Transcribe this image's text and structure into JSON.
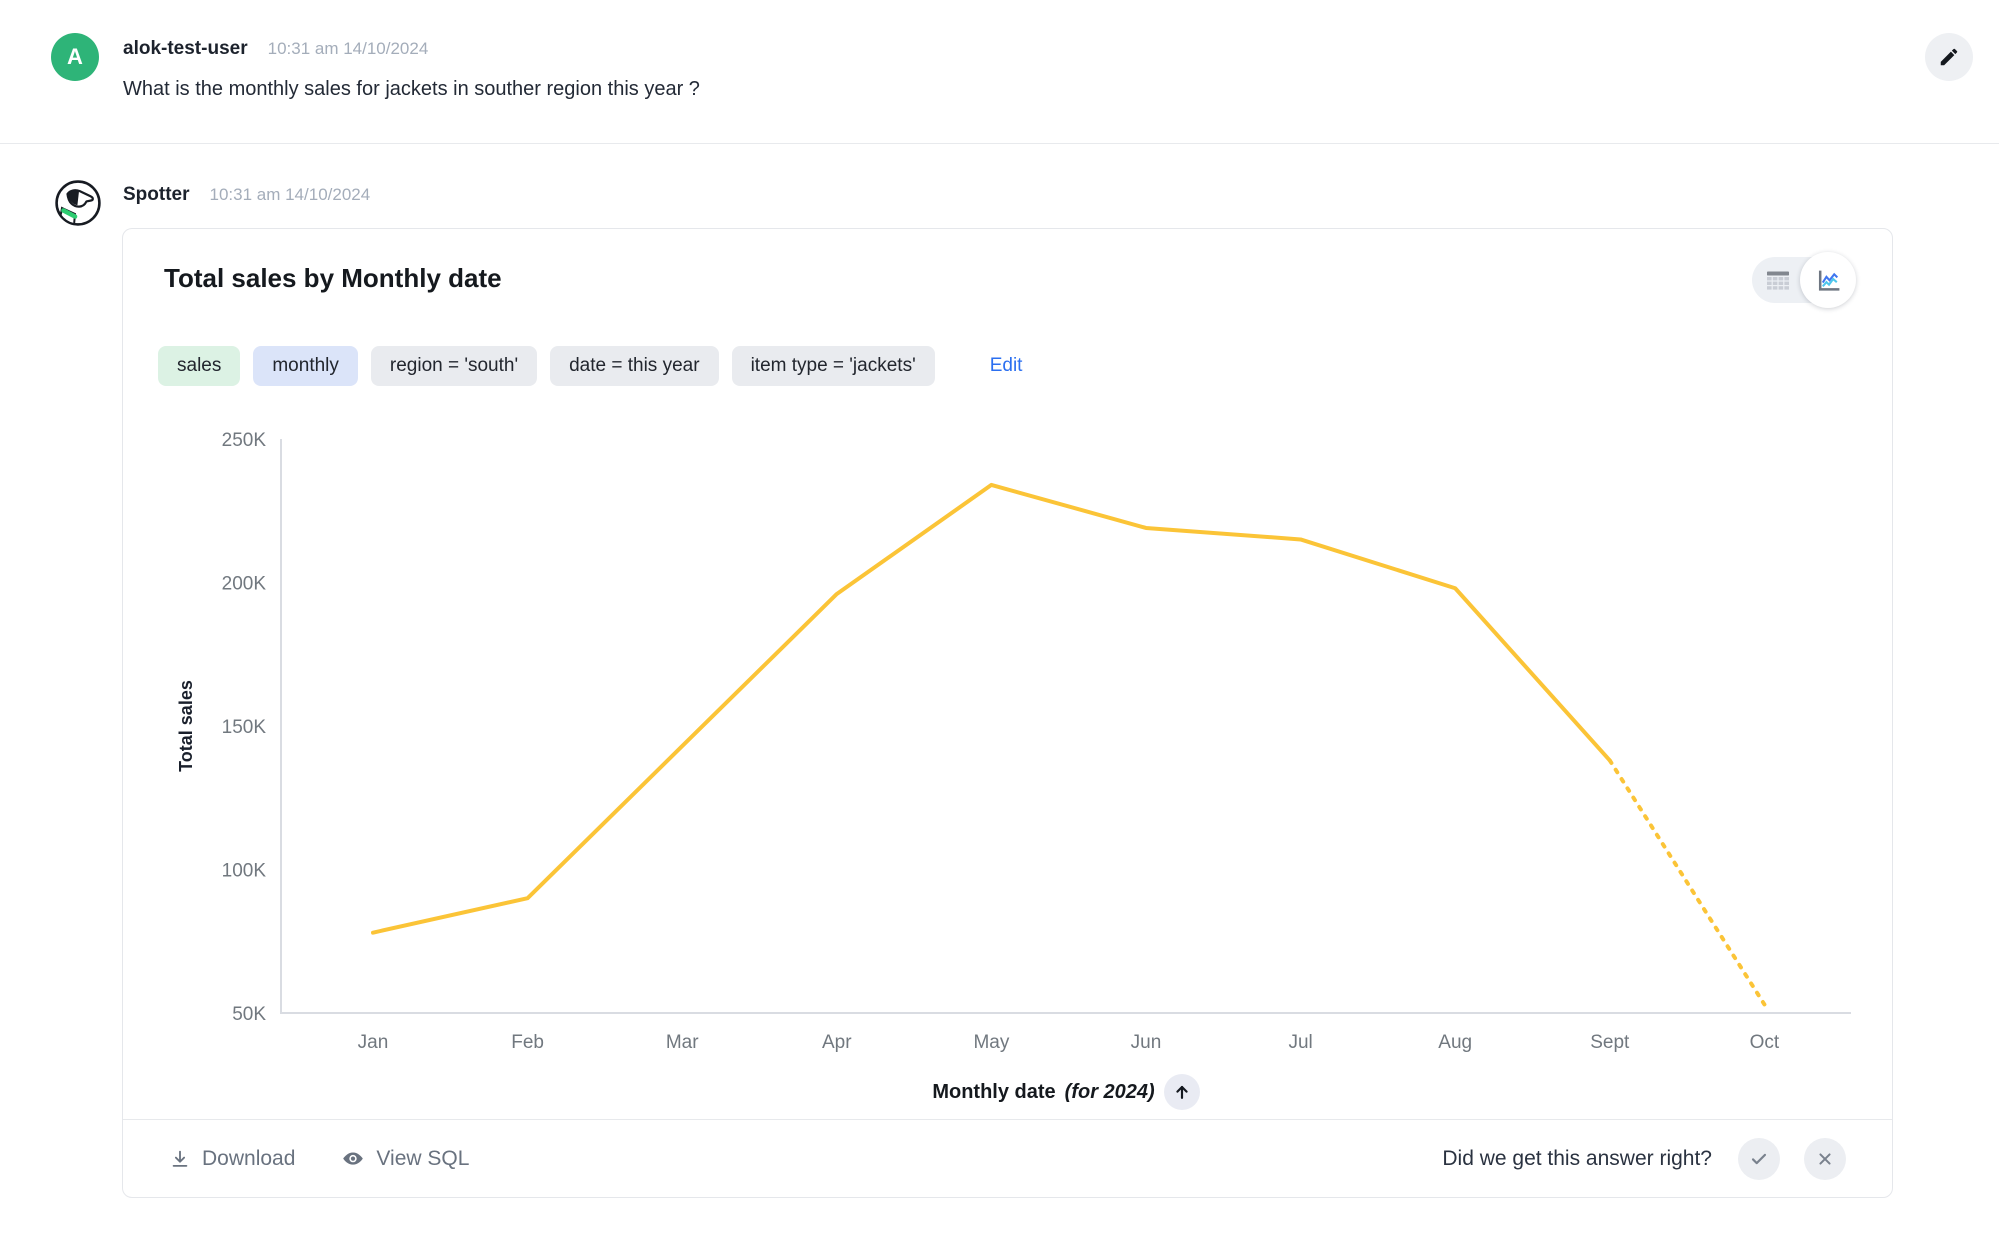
{
  "user_message": {
    "avatar_initial": "A",
    "username": "alok-test-user",
    "timestamp": "10:31 am 14/10/2024",
    "text": "What is the monthly sales for jackets in souther region this year ?"
  },
  "assistant_message": {
    "name": "Spotter",
    "timestamp": "10:31 am 14/10/2024"
  },
  "card": {
    "title": "Total sales by Monthly date",
    "chips": [
      {
        "label": "sales",
        "bg": "#DCF2E4"
      },
      {
        "label": "monthly",
        "bg": "#DBE4F9"
      },
      {
        "label": "region = 'south'",
        "bg": "#E9EBEF"
      },
      {
        "label": "date = this year",
        "bg": "#E9EBEF"
      },
      {
        "label": "item type = 'jackets'",
        "bg": "#E9EBEF"
      }
    ],
    "edit_label": "Edit",
    "view_toggle": {
      "options": [
        "table-view",
        "chart-view"
      ],
      "selected": "chart-view"
    }
  },
  "chart_data": {
    "type": "line",
    "title": "Total sales by Monthly date",
    "categories": [
      "Jan",
      "Feb",
      "Mar",
      "Apr",
      "May",
      "Jun",
      "Jul",
      "Aug",
      "Sept",
      "Oct"
    ],
    "series": [
      {
        "name": "Total sales",
        "values": [
          78000,
          90000,
          143000,
          196000,
          234000,
          219000,
          215000,
          198000,
          138000,
          53000
        ],
        "solid_until_index": 8,
        "dotted_after": "Sept"
      }
    ],
    "xlabel": "Monthly date",
    "xlabel_annotation": "(for 2024)",
    "ylabel": "Total sales",
    "ylim": [
      50000,
      250000
    ],
    "ytick_values": [
      50000,
      100000,
      150000,
      200000,
      250000
    ],
    "ytick_labels": [
      "50K",
      "100K",
      "150K",
      "200K",
      "250K"
    ],
    "grid": false,
    "legend": false,
    "line_color": "#FBC437",
    "axis_color": "#D9DCE2"
  },
  "footer": {
    "download_label": "Download",
    "view_sql_label": "View SQL",
    "feedback_question": "Did we get this answer right?"
  },
  "colors": {
    "avatar_green": "#2EB478",
    "link_blue": "#2B6FF0",
    "timestamp_gray": "#A4ADBA"
  },
  "icons": {
    "edit_message": "pencil-icon",
    "table_view": "table-icon",
    "chart_view": "line-chart-icon",
    "sort": "arrow-up-icon",
    "download": "download-icon",
    "view_sql": "eye-icon",
    "feedback_yes": "check-icon",
    "feedback_no": "close-icon"
  }
}
